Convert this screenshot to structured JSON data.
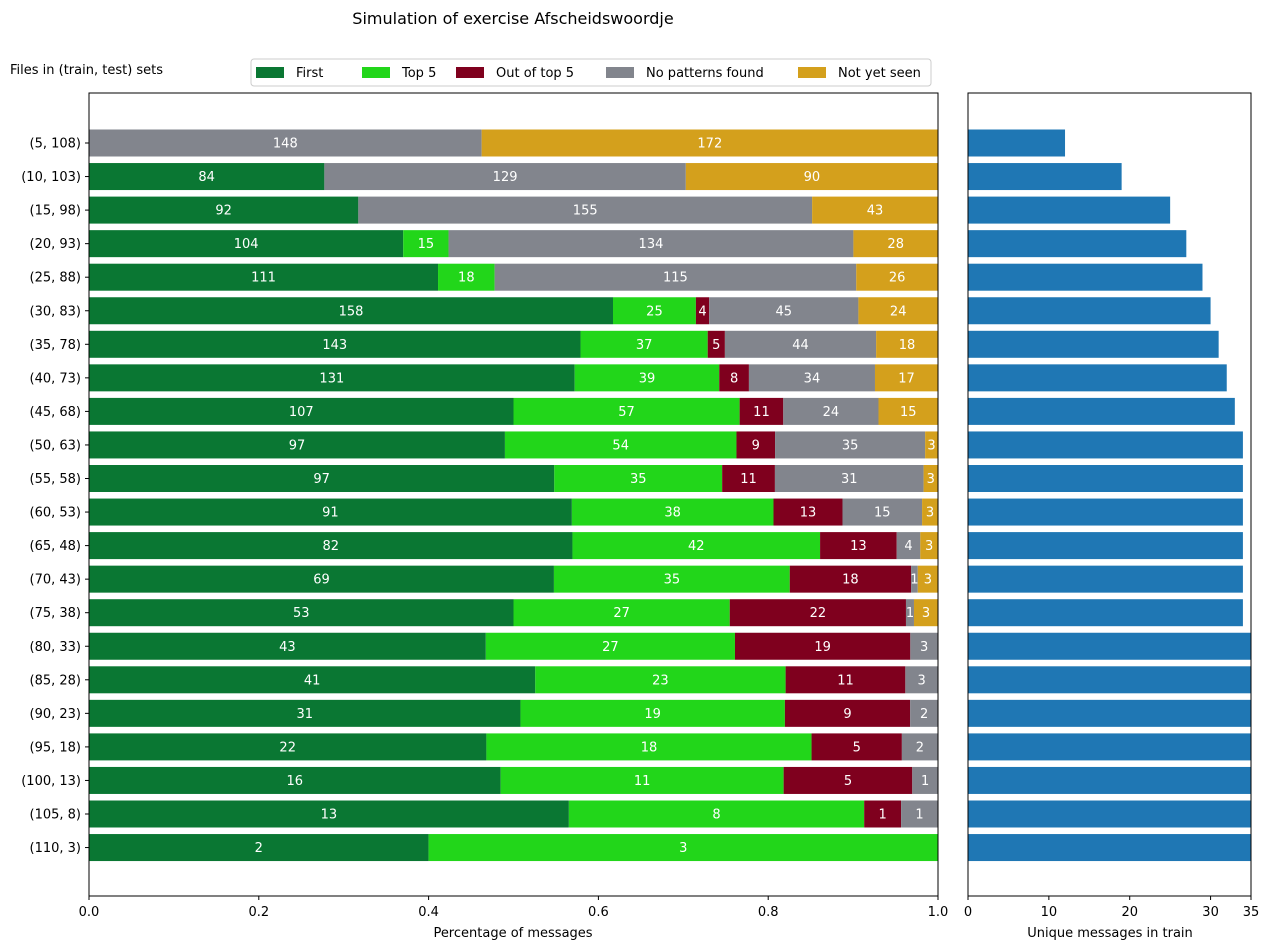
{
  "title": "Simulation of exercise Afscheidswoordje",
  "chart_data": [
    {
      "type": "bar",
      "orientation": "horizontal",
      "stacked": true,
      "normalized": true,
      "ylabel": "Files in (train, test) sets",
      "xlabel": "Percentage of messages",
      "xlim": [
        0,
        1.0
      ],
      "xticks": [
        "0.0",
        "0.2",
        "0.4",
        "0.6",
        "0.8",
        "1.0"
      ],
      "legend_position": "top",
      "categories": [
        "(5, 108)",
        "(10, 103)",
        "(15, 98)",
        "(20, 93)",
        "(25, 88)",
        "(30, 83)",
        "(35, 78)",
        "(40, 73)",
        "(45, 68)",
        "(50, 63)",
        "(55, 58)",
        "(60, 53)",
        "(65, 48)",
        "(70, 43)",
        "(75, 38)",
        "(80, 33)",
        "(85, 28)",
        "(90, 23)",
        "(95, 18)",
        "(100, 13)",
        "(105, 8)",
        "(110, 3)"
      ],
      "series": [
        {
          "name": "First",
          "color": "#0a7733",
          "values": [
            0,
            84,
            92,
            104,
            111,
            158,
            143,
            131,
            107,
            97,
            97,
            91,
            82,
            69,
            53,
            43,
            41,
            31,
            22,
            16,
            13,
            2
          ]
        },
        {
          "name": "Top 5",
          "color": "#22d61a",
          "values": [
            0,
            0,
            0,
            15,
            18,
            25,
            37,
            39,
            57,
            54,
            35,
            38,
            42,
            35,
            27,
            27,
            23,
            19,
            18,
            11,
            8,
            3
          ]
        },
        {
          "name": "Out of top 5",
          "color": "#7f001e",
          "values": [
            0,
            0,
            0,
            0,
            0,
            4,
            5,
            8,
            11,
            9,
            11,
            13,
            13,
            18,
            22,
            19,
            11,
            9,
            5,
            5,
            1,
            0
          ]
        },
        {
          "name": "No patterns found",
          "color": "#82858d",
          "values": [
            148,
            129,
            155,
            134,
            115,
            45,
            44,
            34,
            24,
            35,
            31,
            15,
            4,
            1,
            1,
            3,
            3,
            2,
            2,
            1,
            1,
            0
          ]
        },
        {
          "name": "Not yet seen",
          "color": "#d4a01c",
          "values": [
            172,
            90,
            43,
            28,
            26,
            24,
            18,
            17,
            15,
            3,
            3,
            3,
            3,
            3,
            3,
            0,
            0,
            0,
            0,
            0,
            0,
            0
          ]
        }
      ]
    },
    {
      "type": "bar",
      "orientation": "horizontal",
      "xlabel": "Unique messages in train",
      "xlim": [
        0,
        35
      ],
      "xticks": [
        "0",
        "10",
        "20",
        "30",
        "35"
      ],
      "color": "#1f77b4",
      "categories": [
        "(5, 108)",
        "(10, 103)",
        "(15, 98)",
        "(20, 93)",
        "(25, 88)",
        "(30, 83)",
        "(35, 78)",
        "(40, 73)",
        "(45, 68)",
        "(50, 63)",
        "(55, 58)",
        "(60, 53)",
        "(65, 48)",
        "(70, 43)",
        "(75, 38)",
        "(80, 33)",
        "(85, 28)",
        "(90, 23)",
        "(95, 18)",
        "(100, 13)",
        "(105, 8)",
        "(110, 3)"
      ],
      "values": [
        12,
        19,
        25,
        27,
        29,
        30,
        31,
        32,
        33,
        34,
        34,
        34,
        34,
        34,
        34,
        35,
        35,
        35,
        35,
        35,
        35,
        35
      ]
    }
  ]
}
